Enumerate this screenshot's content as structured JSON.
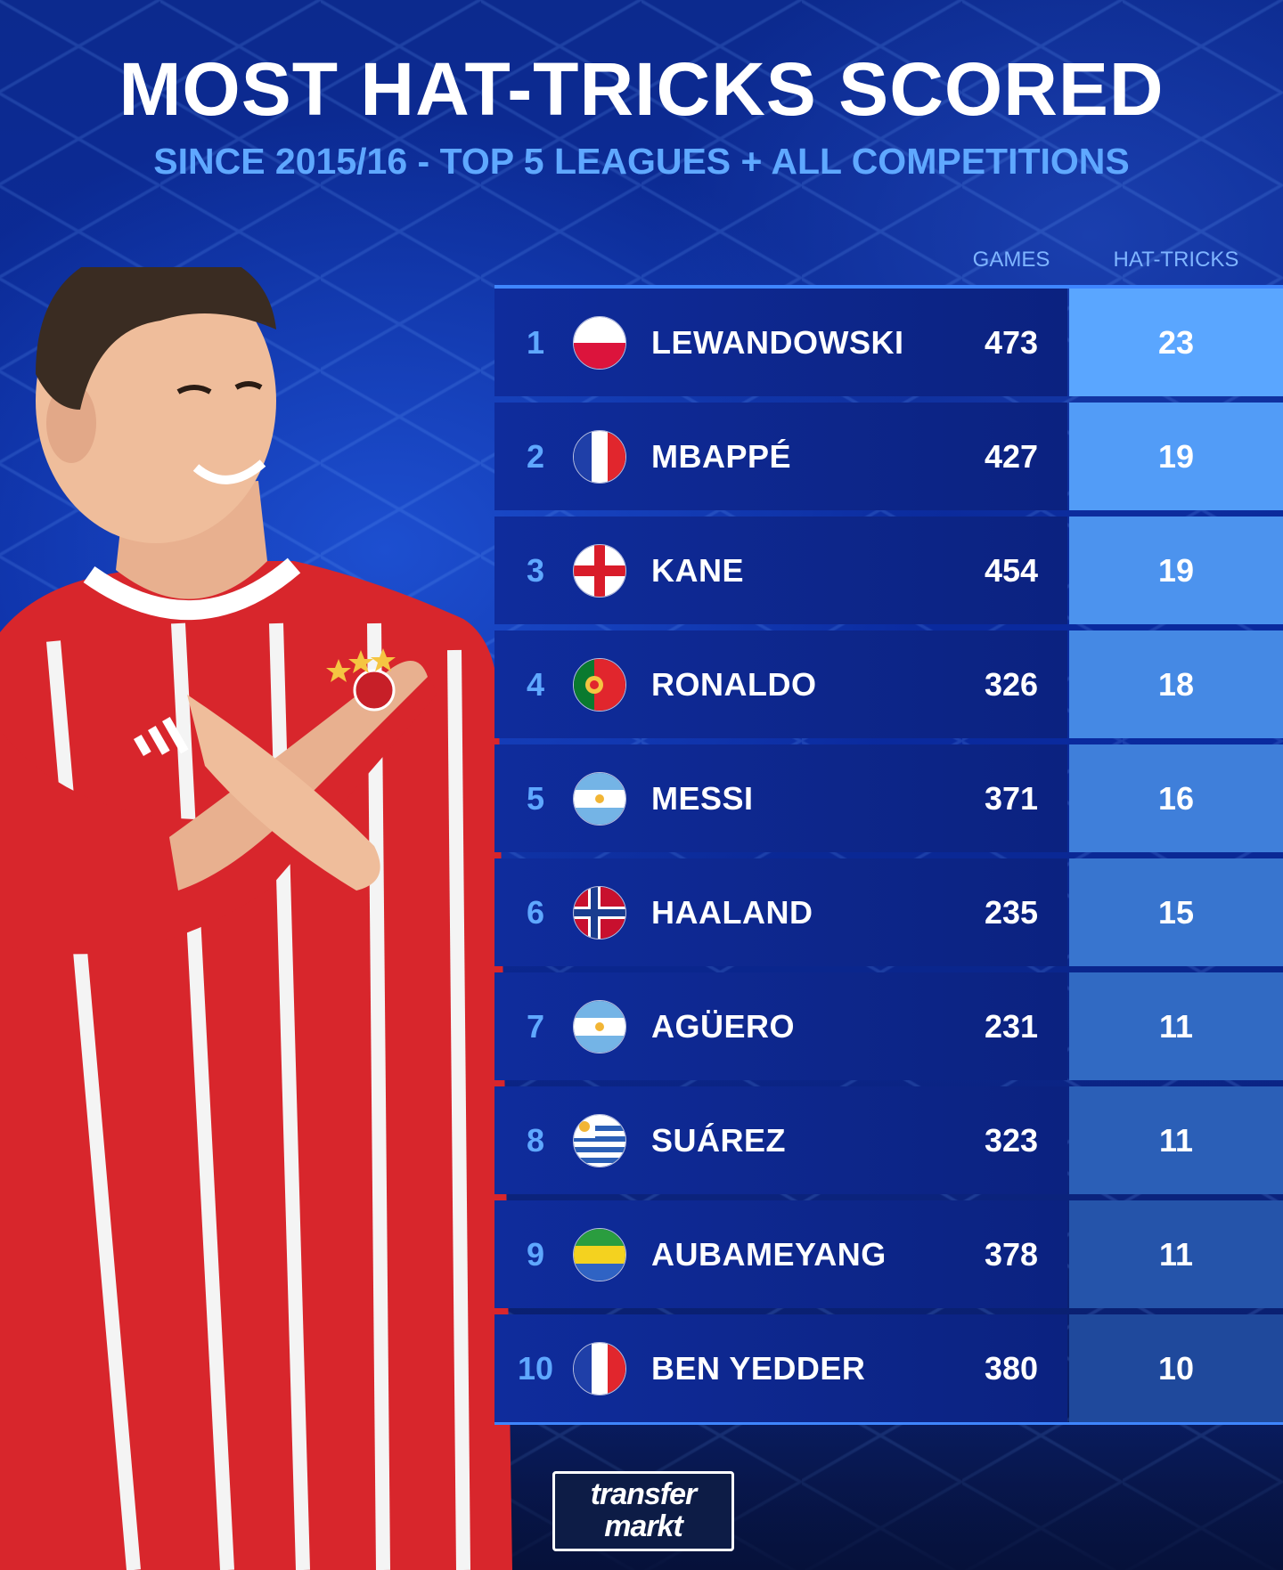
{
  "title": "MOST HAT-TRICKS SCORED",
  "subtitle": "SINCE 2015/16 - TOP 5 LEAGUES + ALL COMPETITIONS",
  "columns": {
    "games": "GAMES",
    "hattricks": "HAT-TRICKS"
  },
  "rows": [
    {
      "rank": "1",
      "name": "LEWANDOWSKI",
      "games": "473",
      "hattricks": "23",
      "flag": "poland-flag-icon",
      "hat_color": "#5aa6ff"
    },
    {
      "rank": "2",
      "name": "MBAPPÉ",
      "games": "427",
      "hattricks": "19",
      "flag": "france-flag-icon",
      "hat_color": "#529cf7"
    },
    {
      "rank": "3",
      "name": "KANE",
      "games": "454",
      "hattricks": "19",
      "flag": "england-flag-icon",
      "hat_color": "#4c93ee"
    },
    {
      "rank": "4",
      "name": "RONALDO",
      "games": "326",
      "hattricks": "18",
      "flag": "portugal-flag-icon",
      "hat_color": "#4589e4"
    },
    {
      "rank": "5",
      "name": "MESSI",
      "games": "371",
      "hattricks": "16",
      "flag": "argentina-flag-icon",
      "hat_color": "#3f7fda"
    },
    {
      "rank": "6",
      "name": "HAALAND",
      "games": "235",
      "hattricks": "15",
      "flag": "norway-flag-icon",
      "hat_color": "#3875cf"
    },
    {
      "rank": "7",
      "name": "AGÜERO",
      "games": "231",
      "hattricks": "11",
      "flag": "argentina-flag-icon",
      "hat_color": "#316ac3"
    },
    {
      "rank": "8",
      "name": "SUÁREZ",
      "games": "323",
      "hattricks": "11",
      "flag": "uruguay-flag-icon",
      "hat_color": "#2b5fb7"
    },
    {
      "rank": "9",
      "name": "AUBAMEYANG",
      "games": "378",
      "hattricks": "11",
      "flag": "gabon-flag-icon",
      "hat_color": "#2554aa"
    },
    {
      "rank": "10",
      "name": "BEN YEDDER",
      "games": "380",
      "hattricks": "10",
      "flag": "france-flag-icon",
      "hat_color": "#1f499c"
    }
  ],
  "logo": {
    "line1": "transfer",
    "line2": "markt"
  },
  "colors": {
    "accent": "#5fa8ff",
    "title": "#ffffff",
    "row_bg": "#0f2c9c"
  }
}
